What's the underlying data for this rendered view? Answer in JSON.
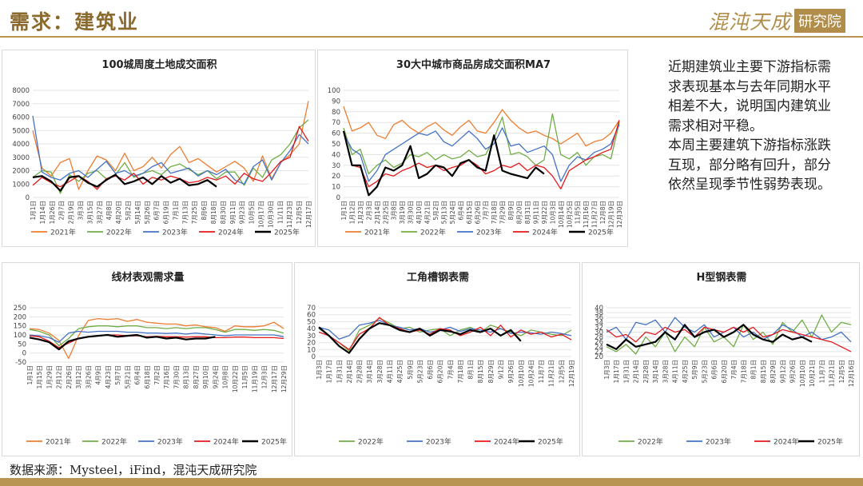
{
  "header": {
    "title": "需求：建筑业",
    "logo_text": "混沌天成",
    "logo_badge": "研究院"
  },
  "colors": {
    "2021年": "#ed7d31",
    "2022年": "#70ad47",
    "2023年": "#4472c4",
    "2024年": "#e31a1c",
    "2025年": "#000000"
  },
  "note": {
    "p1": "近期建筑业主要下游指标需求表现基本与去年同期水平相差不大，说明国内建筑业需求相对平稳。",
    "p2": "本周主要建筑下游指标涨跌互现，部分略有回升，部分依然呈现季节性弱势表现。"
  },
  "source": "数据来源：Mysteel，iFind，混沌天成研究院",
  "chart_data": [
    {
      "id": "land",
      "type": "line",
      "title": "100城周度土地成交面积",
      "ylim": [
        0,
        8000
      ],
      "yticks": [
        0,
        1000,
        2000,
        3000,
        4000,
        5000,
        6000,
        7000,
        8000
      ],
      "x_tick_labels": [
        "1月1日",
        "1月14日",
        "1月26日",
        "2月7日",
        "2月19日",
        "3月3日",
        "3月15日",
        "3月27日",
        "4月8日",
        "4月20日",
        "5月2日",
        "5月14日",
        "5月26日",
        "6月7日",
        "6月19日",
        "7月1日",
        "7月13日",
        "7月25日",
        "8月6日",
        "8月18日",
        "8月30日",
        "9月11日",
        "9月23日",
        "10月5日",
        "10月17日",
        "10月30日",
        "11/11日",
        "11月23日",
        "12月5日",
        "12月17日"
      ],
      "series": [
        {
          "name": "2021年",
          "values": [
            5000,
            2200,
            1600,
            2600,
            2900,
            600,
            2000,
            3100,
            2800,
            2000,
            3300,
            2000,
            2300,
            3000,
            2200,
            3200,
            3800,
            2600,
            2900,
            2400,
            1900,
            2300,
            2700,
            2200,
            1200,
            3100,
            1400,
            2600,
            3200,
            4000,
            7200
          ]
        },
        {
          "name": "2022年",
          "values": [
            1500,
            2000,
            1900,
            300,
            1700,
            1200,
            1800,
            2000,
            1400,
            1700,
            2600,
            1500,
            1800,
            2000,
            1700,
            2300,
            2500,
            2100,
            1700,
            2000,
            1400,
            1900,
            1900,
            900,
            2200,
            1500,
            2800,
            3200,
            4000,
            5200,
            5800
          ]
        },
        {
          "name": "2023年",
          "values": [
            6100,
            1900,
            1500,
            1300,
            1800,
            2000,
            1500,
            2100,
            2700,
            1800,
            2000,
            1600,
            1800,
            2300,
            2600,
            1800,
            2000,
            2200,
            1600,
            2000,
            1700,
            2100,
            1300,
            1000,
            2300,
            2800,
            1300,
            2600,
            3500,
            4700,
            4000
          ]
        },
        {
          "name": "2024年",
          "values": [
            900,
            1500,
            1100,
            800,
            1200,
            1600,
            1200,
            600,
            1400,
            1600,
            1300,
            1800,
            1000,
            1500,
            1300,
            1600,
            1400,
            1100,
            1200,
            1500,
            1300,
            1600,
            1000,
            1800,
            1400,
            1200,
            1900,
            2700,
            3000,
            5300,
            4200
          ]
        },
        {
          "name": "2025年",
          "values": [
            1500,
            1600,
            1200,
            500,
            1500,
            1600,
            1100,
            800,
            1300,
            1700,
            1000,
            1200,
            1500,
            1000,
            1600,
            1100,
            1400,
            900,
            1000,
            1300,
            800
          ]
        }
      ]
    },
    {
      "id": "housing",
      "type": "line",
      "title": "30大中城市商品房成交面积MA7",
      "ylim": [
        0,
        100
      ],
      "yticks": [
        0,
        10,
        20,
        30,
        40,
        50,
        60,
        70,
        80,
        90,
        100
      ],
      "x_tick_labels": [
        "1月1日",
        "1月12日",
        "1月23日",
        "2月3日",
        "2月14日",
        "2月25日",
        "3月8日",
        "3月19日",
        "3月30日",
        "4月10日",
        "4月21日",
        "5月2日",
        "5月13日",
        "5月24日",
        "6月4日",
        "6月15日",
        "6月26日",
        "7月7日",
        "7月18日",
        "7月29日",
        "8月9日",
        "8月20日",
        "8月31日",
        "9月11日",
        "9月22日",
        "10月3日",
        "10月14日",
        "10月25日",
        "11月5日",
        "11月16日",
        "11月27日",
        "12月8日",
        "12月19日",
        "12月30日"
      ],
      "series": [
        {
          "name": "2021年",
          "values": [
            85,
            62,
            65,
            70,
            58,
            55,
            68,
            72,
            65,
            60,
            66,
            70,
            63,
            58,
            66,
            72,
            62,
            60,
            70,
            82,
            72,
            65,
            60,
            62,
            58,
            55,
            50,
            55,
            60,
            48,
            52,
            54,
            60,
            72
          ]
        },
        {
          "name": "2022年",
          "values": [
            65,
            40,
            45,
            22,
            30,
            35,
            28,
            32,
            40,
            38,
            42,
            35,
            40,
            36,
            38,
            44,
            38,
            40,
            55,
            75,
            40,
            42,
            38,
            30,
            35,
            78,
            40,
            36,
            42,
            30,
            38,
            40,
            36,
            70
          ]
        },
        {
          "name": "2023年",
          "values": [
            60,
            45,
            40,
            15,
            25,
            40,
            45,
            50,
            55,
            60,
            58,
            62,
            52,
            48,
            55,
            62,
            55,
            45,
            50,
            65,
            48,
            50,
            42,
            45,
            48,
            40,
            15,
            30,
            38,
            35,
            42,
            45,
            50,
            68
          ]
        },
        {
          "name": "2024年",
          "values": [
            62,
            30,
            28,
            10,
            15,
            22,
            20,
            25,
            28,
            32,
            28,
            30,
            25,
            28,
            30,
            35,
            30,
            22,
            25,
            30,
            28,
            32,
            25,
            30,
            28,
            20,
            8,
            25,
            30,
            35,
            38,
            42,
            45,
            72
          ]
        },
        {
          "name": "2025年",
          "values": [
            62,
            30,
            30,
            2,
            10,
            28,
            25,
            30,
            48,
            18,
            22,
            30,
            28,
            20,
            32,
            35,
            28,
            25,
            58,
            25,
            22,
            20,
            18,
            28,
            22
          ]
        }
      ]
    },
    {
      "id": "wire",
      "type": "line",
      "title": "线材表观需求量",
      "ylim": [
        -50,
        250
      ],
      "yticks": [
        -50,
        0,
        50,
        100,
        150,
        200,
        250
      ],
      "x_tick_labels": [
        "1月1日",
        "1月15日",
        "1月29日",
        "2月12日",
        "2月26日",
        "3月12日",
        "3月26日",
        "4月9日",
        "4月23日",
        "5月7日",
        "5月21日",
        "6月4日",
        "6月18日",
        "7月2日",
        "7月16日",
        "7月30日",
        "8月13日",
        "8月27日",
        "9月10日",
        "9月24日",
        "10月8日",
        "10月22日",
        "11月5日",
        "11月19日",
        "12月3日",
        "12月17日",
        "12月29日"
      ],
      "series": [
        {
          "name": "2021年",
          "values": [
            135,
            130,
            110,
            70,
            -30,
            95,
            180,
            190,
            185,
            190,
            175,
            185,
            170,
            165,
            160,
            160,
            150,
            155,
            145,
            140,
            120,
            150,
            145,
            145,
            150,
            170,
            135
          ]
        },
        {
          "name": "2022年",
          "values": [
            130,
            120,
            100,
            40,
            80,
            135,
            145,
            150,
            150,
            145,
            150,
            150,
            140,
            140,
            135,
            140,
            135,
            140,
            140,
            130,
            115,
            130,
            130,
            125,
            130,
            125,
            110
          ]
        },
        {
          "name": "2023年",
          "values": [
            100,
            95,
            85,
            60,
            110,
            120,
            115,
            120,
            120,
            120,
            115,
            115,
            110,
            110,
            108,
            110,
            105,
            110,
            105,
            100,
            95,
            100,
            100,
            100,
            100,
            100,
            90
          ]
        },
        {
          "name": "2024年",
          "values": [
            95,
            90,
            65,
            30,
            55,
            80,
            90,
            95,
            100,
            100,
            95,
            95,
            90,
            92,
            90,
            90,
            88,
            90,
            90,
            85,
            85,
            88,
            88,
            85,
            85,
            85,
            80
          ]
        },
        {
          "name": "2025年",
          "values": [
            85,
            75,
            60,
            20,
            65,
            80,
            90,
            95,
            100,
            90,
            95,
            100,
            85,
            90,
            80,
            85,
            75,
            80,
            80,
            90
          ]
        }
      ]
    },
    {
      "id": "angle",
      "type": "line",
      "title": "工角槽钢表需",
      "ylim": [
        0,
        70
      ],
      "yticks": [
        0,
        10,
        20,
        30,
        40,
        50,
        60,
        70
      ],
      "x_tick_labels": [
        "1月3日",
        "1月17日",
        "1月31日",
        "2月14日",
        "2月28日",
        "3月14日",
        "3月28日",
        "4月11日",
        "4月25日",
        "5月9日",
        "5月23日",
        "6月6日",
        "6月20日",
        "7月4日",
        "7月18日",
        "8月1日",
        "8月15日",
        "8月29日",
        "9/12日",
        "9月26日",
        "10月10日",
        "10月24日",
        "11月7日",
        "11月21日",
        "12月5日",
        "12月19日"
      ],
      "series": [
        {
          "name": "2022年",
          "values": [
            40,
            30,
            20,
            8,
            38,
            45,
            55,
            48,
            40,
            42,
            35,
            38,
            40,
            30,
            38,
            42,
            35,
            45,
            40,
            35,
            30,
            38,
            35,
            32,
            30,
            38
          ]
        },
        {
          "name": "2023年",
          "values": [
            42,
            38,
            25,
            30,
            45,
            48,
            52,
            45,
            42,
            38,
            40,
            35,
            38,
            42,
            36,
            40,
            38,
            35,
            40,
            33,
            35,
            34,
            32,
            35,
            33,
            30
          ]
        },
        {
          "name": "2024年",
          "values": [
            35,
            30,
            20,
            10,
            32,
            40,
            56,
            45,
            40,
            35,
            38,
            32,
            40,
            38,
            30,
            35,
            42,
            30,
            45,
            28,
            38,
            32,
            35,
            28,
            32,
            24
          ]
        },
        {
          "name": "2025年",
          "values": [
            42,
            30,
            15,
            5,
            25,
            40,
            48,
            45,
            38,
            35,
            40,
            30,
            38,
            36,
            32,
            38,
            35,
            40,
            30,
            38,
            22
          ]
        }
      ]
    },
    {
      "id": "hbeam",
      "type": "line",
      "title": "H型钢表需",
      "ylim": [
        20,
        40
      ],
      "yticks": [
        20,
        22,
        24,
        26,
        28,
        30,
        32,
        34,
        36,
        38,
        40
      ],
      "x_tick_labels": [
        "1月3日",
        "1月17日",
        "1月31日",
        "2月14日",
        "2月28日",
        "3月14日",
        "3月28日",
        "4月11日",
        "4月25日",
        "5月9日",
        "5月23日",
        "6月6日",
        "6月20日",
        "7月4日",
        "7月18日",
        "8月1日",
        "8月15日",
        "8月29日",
        "9月12日",
        "9月26日",
        "10月10日",
        "10月21日",
        "11月7日",
        "11月21日",
        "12月5日",
        "12月16日"
      ],
      "series": [
        {
          "name": "2022年",
          "values": [
            24,
            22,
            25,
            21,
            28,
            24,
            30,
            22,
            28,
            24,
            32,
            26,
            28,
            24,
            33,
            27,
            30,
            25,
            34,
            30,
            35,
            28,
            37,
            30,
            34,
            33
          ]
        },
        {
          "name": "2023年",
          "values": [
            30,
            32,
            27,
            34,
            33,
            35,
            30,
            36,
            32,
            30,
            33,
            28,
            30,
            32,
            28,
            30,
            27,
            29,
            33,
            31,
            28,
            30,
            27,
            28,
            30,
            26
          ]
        },
        {
          "name": "2024年",
          "values": [
            31,
            28,
            29,
            26,
            30,
            29,
            32,
            30,
            31,
            28,
            32,
            31,
            30,
            32,
            30,
            32,
            28,
            29,
            31,
            30,
            29,
            28,
            27,
            26,
            24,
            22
          ]
        },
        {
          "name": "2025年",
          "values": [
            25,
            23,
            27,
            24,
            25,
            26,
            30,
            27,
            33,
            28,
            30,
            31,
            28,
            30,
            33,
            29,
            27,
            26,
            29,
            27,
            28,
            26
          ]
        }
      ]
    }
  ]
}
